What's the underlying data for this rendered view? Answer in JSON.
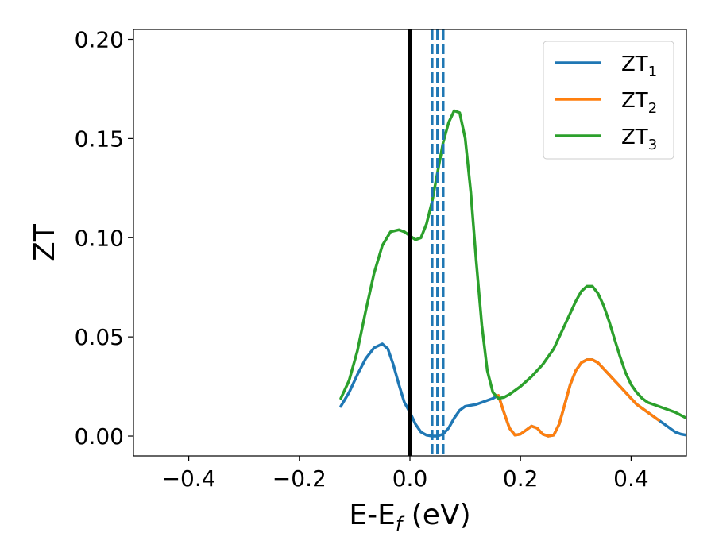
{
  "chart_data": {
    "type": "line",
    "xlabel": "E-E",
    "xlabel_sub": "f",
    "xlabel_unit": "(eV)",
    "ylabel": "ZT",
    "xlim": [
      -0.5,
      0.5
    ],
    "ylim": [
      -0.01,
      0.205
    ],
    "xticks": [
      -0.4,
      -0.2,
      0.0,
      0.2,
      0.4
    ],
    "xtick_labels": [
      "−0.4",
      "−0.2",
      "0.0",
      "0.2",
      "0.4"
    ],
    "yticks": [
      0.0,
      0.05,
      0.1,
      0.15,
      0.2
    ],
    "ytick_labels": [
      "0.00",
      "0.05",
      "0.10",
      "0.15",
      "0.20"
    ],
    "grid": false,
    "legend_position": "top-right",
    "series": [
      {
        "name": "ZT",
        "sub": "1",
        "color": "#1f77b4",
        "x": [
          -0.125,
          -0.11,
          -0.095,
          -0.08,
          -0.065,
          -0.05,
          -0.04,
          -0.03,
          -0.02,
          -0.01,
          0.0,
          0.01,
          0.02,
          0.03,
          0.04,
          0.05,
          0.06,
          0.07,
          0.08,
          0.09,
          0.1,
          0.11,
          0.12,
          0.13,
          0.14,
          0.15,
          0.16,
          0.17,
          0.18,
          0.19,
          0.2,
          0.21,
          0.22,
          0.23,
          0.24,
          0.25,
          0.26,
          0.27,
          0.28,
          0.29,
          0.3,
          0.31,
          0.32,
          0.33,
          0.34,
          0.35,
          0.36,
          0.37,
          0.38,
          0.39,
          0.4,
          0.41,
          0.42,
          0.43,
          0.44,
          0.45,
          0.46,
          0.47,
          0.48,
          0.49,
          0.5
        ],
        "y": [
          0.015,
          0.022,
          0.031,
          0.039,
          0.0445,
          0.0465,
          0.044,
          0.036,
          0.026,
          0.017,
          0.012,
          0.006,
          0.002,
          0.0005,
          0.0,
          0.0,
          0.001,
          0.004,
          0.009,
          0.013,
          0.015,
          0.0155,
          0.016,
          0.017,
          0.018,
          0.019,
          0.0205,
          0.012,
          0.004,
          0.0005,
          0.001,
          0.003,
          0.005,
          0.004,
          0.001,
          0.0,
          0.0005,
          0.006,
          0.016,
          0.026,
          0.033,
          0.037,
          0.0385,
          0.0385,
          0.037,
          0.034,
          0.031,
          0.028,
          0.025,
          0.022,
          0.019,
          0.016,
          0.014,
          0.012,
          0.01,
          0.008,
          0.006,
          0.004,
          0.002,
          0.001,
          0.0005
        ]
      },
      {
        "name": "ZT",
        "sub": "2",
        "color": "#ff7f0e",
        "x": [
          0.16,
          0.17,
          0.18,
          0.19,
          0.2,
          0.21,
          0.22,
          0.23,
          0.24,
          0.25,
          0.26,
          0.27,
          0.28,
          0.29,
          0.3,
          0.31,
          0.32,
          0.33,
          0.34,
          0.35,
          0.36,
          0.37,
          0.38,
          0.39,
          0.4,
          0.41,
          0.42,
          0.43,
          0.44,
          0.45
        ],
        "y": [
          0.0205,
          0.012,
          0.004,
          0.0005,
          0.001,
          0.003,
          0.005,
          0.004,
          0.001,
          0.0,
          0.0005,
          0.006,
          0.016,
          0.026,
          0.033,
          0.037,
          0.0385,
          0.0385,
          0.037,
          0.034,
          0.031,
          0.028,
          0.025,
          0.022,
          0.019,
          0.016,
          0.014,
          0.012,
          0.01,
          0.008
        ]
      },
      {
        "name": "ZT",
        "sub": "3",
        "color": "#2ca02c",
        "x": [
          -0.125,
          -0.11,
          -0.095,
          -0.08,
          -0.065,
          -0.05,
          -0.035,
          -0.02,
          -0.01,
          0.0,
          0.01,
          0.02,
          0.03,
          0.04,
          0.05,
          0.06,
          0.07,
          0.08,
          0.09,
          0.1,
          0.11,
          0.12,
          0.13,
          0.14,
          0.15,
          0.16,
          0.17,
          0.18,
          0.2,
          0.22,
          0.24,
          0.26,
          0.28,
          0.3,
          0.31,
          0.32,
          0.33,
          0.34,
          0.35,
          0.36,
          0.37,
          0.38,
          0.39,
          0.4,
          0.41,
          0.42,
          0.43,
          0.44,
          0.45,
          0.46,
          0.48,
          0.5
        ],
        "y": [
          0.019,
          0.028,
          0.043,
          0.063,
          0.082,
          0.096,
          0.103,
          0.104,
          0.103,
          0.101,
          0.099,
          0.1,
          0.107,
          0.118,
          0.133,
          0.148,
          0.158,
          0.164,
          0.163,
          0.15,
          0.123,
          0.088,
          0.056,
          0.033,
          0.022,
          0.019,
          0.0195,
          0.021,
          0.025,
          0.03,
          0.036,
          0.044,
          0.056,
          0.068,
          0.073,
          0.0755,
          0.0755,
          0.072,
          0.066,
          0.058,
          0.049,
          0.04,
          0.032,
          0.026,
          0.022,
          0.019,
          0.017,
          0.016,
          0.015,
          0.014,
          0.012,
          0.009
        ]
      }
    ],
    "vertical_lines": [
      {
        "x": 0.0,
        "style": "solid",
        "color": "#000000"
      },
      {
        "x": 0.04,
        "style": "dashed",
        "color": "#1f77b4"
      },
      {
        "x": 0.05,
        "style": "dashed",
        "color": "#1f77b4"
      },
      {
        "x": 0.06,
        "style": "dashed",
        "color": "#1f77b4"
      }
    ]
  }
}
